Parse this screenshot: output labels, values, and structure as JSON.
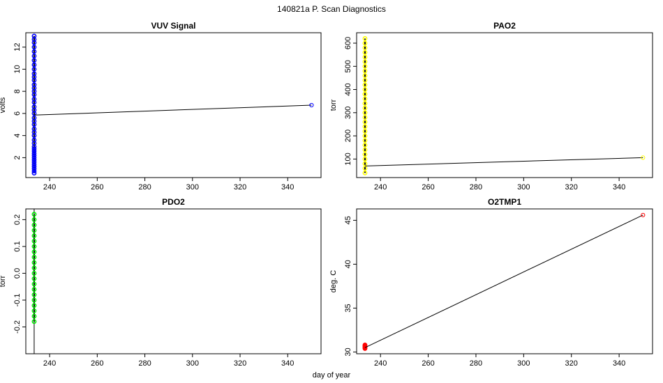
{
  "figure": {
    "title": "140821a   P. Scan Diagnostics",
    "xlabel": "day of year"
  },
  "chart_data": [
    {
      "type": "scatter",
      "title": "VUV Signal",
      "xlabel": "",
      "ylabel": "volts",
      "xlim": [
        230,
        354
      ],
      "ylim": [
        0.2,
        13.3
      ],
      "xticks": [
        240,
        260,
        280,
        300,
        320,
        340
      ],
      "yticks": [
        2,
        4,
        6,
        8,
        10,
        12
      ],
      "color": "#0000ff",
      "cluster": {
        "x": 233.5,
        "y_min": 0.6,
        "y_max": 13.0,
        "y_values": [
          0.6,
          0.8,
          1.0,
          1.2,
          1.4,
          1.6,
          1.8,
          2.0,
          2.2,
          2.4,
          2.6,
          2.8,
          3.0,
          3.3,
          3.6,
          4.0,
          4.3,
          4.6,
          5.0,
          5.3,
          5.6,
          6.0,
          6.3,
          6.6,
          7.0,
          7.3,
          7.7,
          8.0,
          8.3,
          8.6,
          9.0,
          9.3,
          9.6,
          10.0,
          10.4,
          10.8,
          11.2,
          11.6,
          12.0,
          12.4,
          12.7,
          13.0
        ]
      },
      "series": [
        {
          "name": "VUV Signal",
          "x": [
            233.5,
            350
          ],
          "y": [
            5.85,
            6.75
          ]
        }
      ]
    },
    {
      "type": "scatter",
      "title": "PAO2",
      "xlabel": "",
      "ylabel": "torr",
      "xlim": [
        230,
        354
      ],
      "ylim": [
        20,
        645
      ],
      "xticks": [
        240,
        260,
        280,
        300,
        320,
        340
      ],
      "yticks": [
        100,
        200,
        300,
        400,
        500,
        600
      ],
      "color": "#ffff00",
      "cluster": {
        "x": 233.5,
        "y_min": 40,
        "y_max": 620,
        "y_values": [
          40,
          60,
          80,
          100,
          120,
          140,
          160,
          180,
          200,
          220,
          240,
          260,
          280,
          300,
          320,
          340,
          360,
          380,
          400,
          420,
          440,
          460,
          480,
          500,
          520,
          540,
          560,
          580,
          600,
          620
        ]
      },
      "series": [
        {
          "name": "PAO2",
          "x": [
            233.5,
            350
          ],
          "y": [
            70,
            106
          ]
        }
      ]
    },
    {
      "type": "scatter",
      "title": "PDO2",
      "xlabel": "",
      "ylabel": "torr",
      "xlim": [
        230,
        354
      ],
      "ylim": [
        -0.3,
        0.24
      ],
      "xticks": [
        240,
        260,
        280,
        300,
        320,
        340
      ],
      "yticks": [
        -0.2,
        -0.1,
        0.0,
        0.1,
        0.2
      ],
      "color": "#00ee00",
      "vline_x": 233.5,
      "cluster": {
        "x": 233.5,
        "y_min": -0.18,
        "y_max": 0.22,
        "y_values": [
          -0.18,
          -0.16,
          -0.14,
          -0.12,
          -0.1,
          -0.08,
          -0.06,
          -0.04,
          -0.02,
          0.0,
          0.02,
          0.04,
          0.06,
          0.08,
          0.1,
          0.12,
          0.14,
          0.16,
          0.18,
          0.2,
          0.22
        ]
      },
      "series": []
    },
    {
      "type": "scatter",
      "title": "O2TMP1",
      "xlabel": "",
      "ylabel": "deg. C",
      "xlim": [
        230,
        354
      ],
      "ylim": [
        29.8,
        46.3
      ],
      "xticks": [
        240,
        260,
        280,
        300,
        320,
        340
      ],
      "yticks": [
        30,
        35,
        40,
        45
      ],
      "color": "#ff0000",
      "cluster": {
        "x": 233.5,
        "y_min": 30.4,
        "y_max": 30.8,
        "y_values": [
          30.4,
          30.5,
          30.6,
          30.7,
          30.8
        ]
      },
      "series": [
        {
          "name": "O2TMP1",
          "x": [
            233.5,
            350
          ],
          "y": [
            30.5,
            45.6
          ]
        }
      ]
    }
  ]
}
